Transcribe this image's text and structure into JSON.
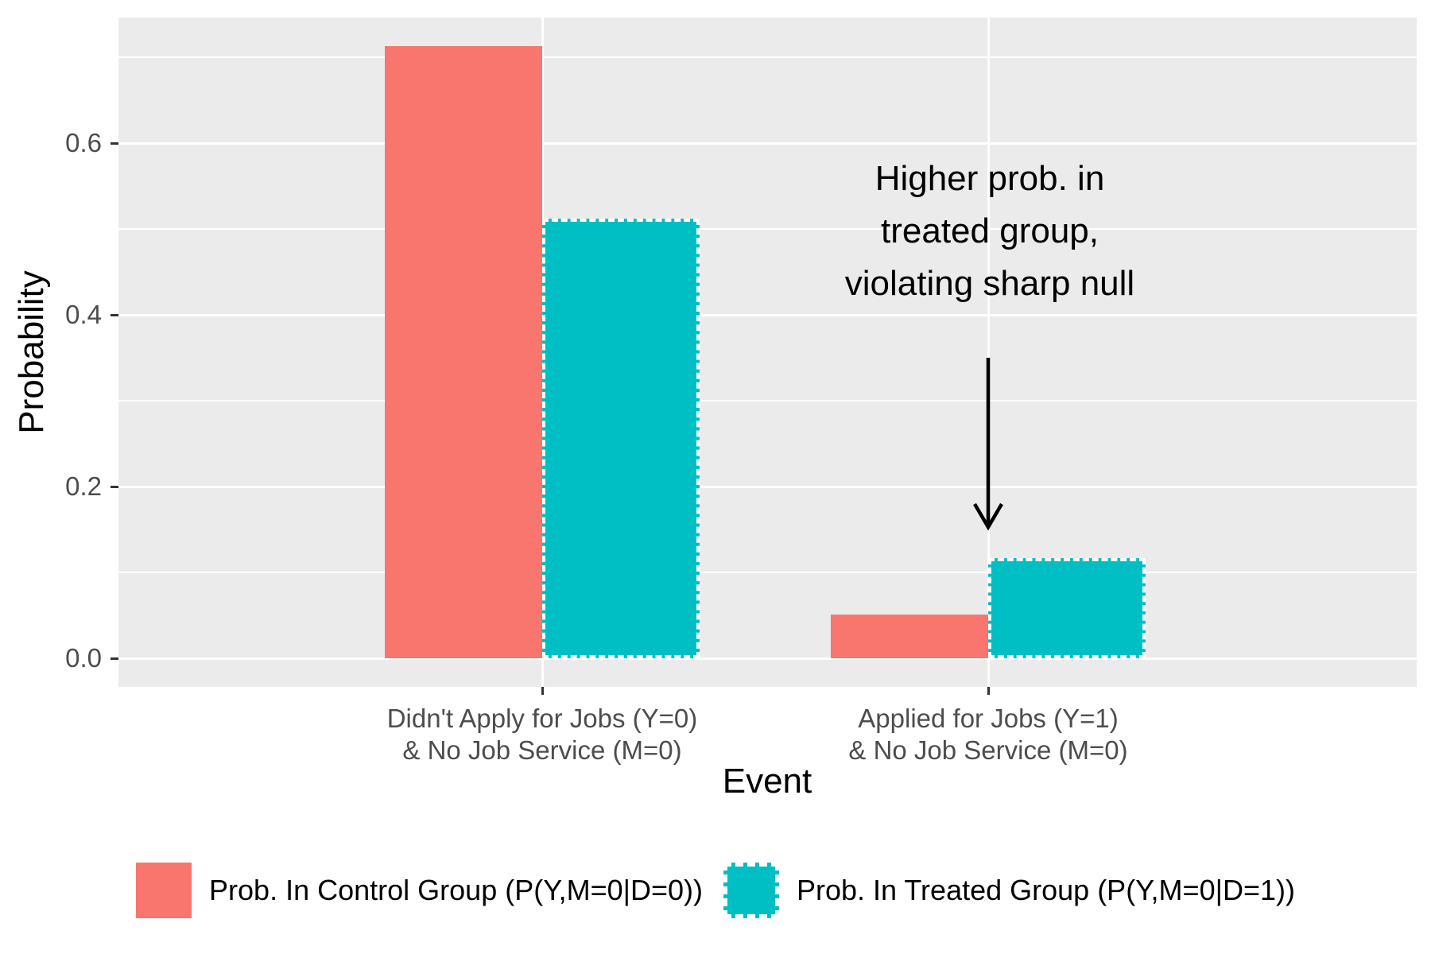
{
  "chart_data": {
    "type": "bar",
    "title": "",
    "xlabel": "Event",
    "ylabel": "Probability",
    "categories": [
      [
        "Didn't Apply for Jobs (Y=0)",
        "& No Job Service (M=0)"
      ],
      [
        "Applied for Jobs (Y=1)",
        "& No Job Service (M=0)"
      ]
    ],
    "series": [
      {
        "name": "Prob. In Control Group (P(Y,M=0|D=0))",
        "color": "#F8766D",
        "border_style": "none",
        "values": [
          0.713,
          0.051
        ]
      },
      {
        "name": "Prob. In Treated Group (P(Y,M=0|D=1))",
        "color": "#00BFC4",
        "border_style": "dashed-white",
        "values": [
          0.512,
          0.117
        ]
      }
    ],
    "y_axis": {
      "ticks": [
        0.0,
        0.2,
        0.4,
        0.6
      ],
      "tick_labels": [
        "0.0",
        "0.2",
        "0.4",
        "0.6"
      ],
      "minor_ticks": [
        0.1,
        0.3,
        0.5,
        0.7
      ],
      "range": [
        -0.036,
        0.748
      ]
    },
    "grid": true,
    "legend_position": "bottom",
    "panel_background": "#EBEBEB",
    "gridline_color": "#FFFFFF",
    "axis_text_color": "#4D4D4D",
    "annotation": {
      "lines": [
        "Higher prob. in",
        "treated group,",
        "violating sharp null"
      ],
      "arrow": {
        "x_category_index": 1,
        "from_y": 0.35,
        "to_y": 0.152
      }
    }
  }
}
